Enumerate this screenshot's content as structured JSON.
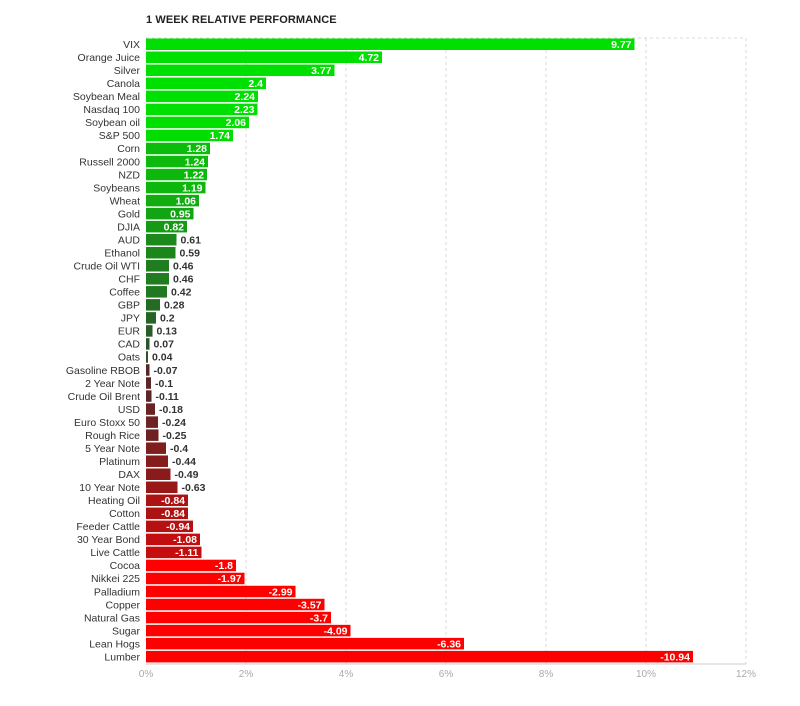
{
  "chart_data": {
    "type": "bar",
    "orientation": "horizontal",
    "title": "1 WEEK RELATIVE PERFORMANCE",
    "xlabel": "",
    "ylabel": "",
    "xlim": [
      -11,
      12
    ],
    "x_ticks": [
      0,
      2,
      4,
      6,
      8,
      10,
      12
    ],
    "x_tick_labels": [
      "0%",
      "2%",
      "4%",
      "6%",
      "8%",
      "10%",
      "12%"
    ],
    "grid": true,
    "legend": "none",
    "categories": [
      "VIX",
      "Orange Juice",
      "Silver",
      "Canola",
      "Soybean Meal",
      "Nasdaq 100",
      "Soybean oil",
      "S&P 500",
      "Corn",
      "Russell 2000",
      "NZD",
      "Soybeans",
      "Wheat",
      "Gold",
      "DJIA",
      "AUD",
      "Ethanol",
      "Crude Oil WTI",
      "CHF",
      "Coffee",
      "GBP",
      "JPY",
      "EUR",
      "CAD",
      "Oats",
      "Gasoline RBOB",
      "2 Year Note",
      "Crude Oil Brent",
      "USD",
      "Euro Stoxx 50",
      "Rough Rice",
      "5 Year Note",
      "Platinum",
      "DAX",
      "10 Year Note",
      "Heating Oil",
      "Cotton",
      "Feeder Cattle",
      "30 Year Bond",
      "Live Cattle",
      "Cocoa",
      "Nikkei 225",
      "Palladium",
      "Copper",
      "Natural Gas",
      "Sugar",
      "Lean Hogs",
      "Lumber"
    ],
    "values": [
      9.77,
      4.72,
      3.77,
      2.4,
      2.24,
      2.23,
      2.06,
      1.74,
      1.28,
      1.24,
      1.22,
      1.19,
      1.06,
      0.95,
      0.82,
      0.61,
      0.59,
      0.46,
      0.46,
      0.42,
      0.28,
      0.2,
      0.13,
      0.07,
      0.04,
      -0.07,
      -0.1,
      -0.11,
      -0.18,
      -0.24,
      -0.25,
      -0.4,
      -0.44,
      -0.49,
      -0.63,
      -0.84,
      -0.84,
      -0.94,
      -1.08,
      -1.11,
      -1.8,
      -1.97,
      -2.99,
      -3.57,
      -3.7,
      -4.09,
      -6.36,
      -10.94
    ],
    "colors": {
      "positive_strong": "#00e000",
      "positive_weak": "#2e4a2e",
      "negative_weak": "#4a2a2a",
      "negative_strong": "#ff0000",
      "tick_text": "#aaaaaa",
      "grid": "#d8d8d8",
      "label_text": "#333333"
    }
  }
}
